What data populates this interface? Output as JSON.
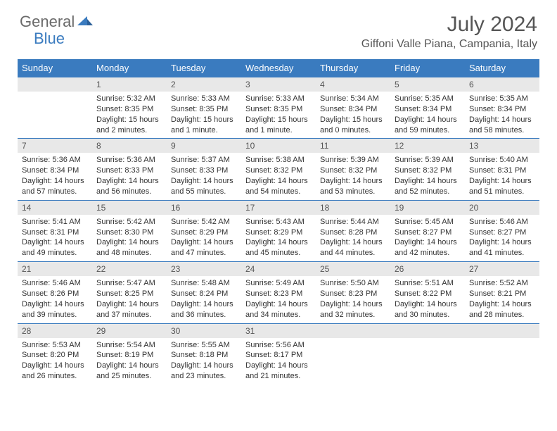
{
  "logo": {
    "text1": "General",
    "text2": "Blue"
  },
  "title": "July 2024",
  "location": "Giffoni Valle Piana, Campania, Italy",
  "colors": {
    "header_bg": "#3a7bbf",
    "header_text": "#ffffff",
    "daynum_bg": "#e8e8e8",
    "border": "#3a7bbf",
    "body_text": "#333333",
    "title_text": "#555555",
    "logo_gray": "#6a6a6a",
    "logo_blue": "#3a7bbf"
  },
  "weekdays": [
    "Sunday",
    "Monday",
    "Tuesday",
    "Wednesday",
    "Thursday",
    "Friday",
    "Saturday"
  ],
  "weeks": [
    [
      null,
      {
        "n": "1",
        "sr": "5:32 AM",
        "ss": "8:35 PM",
        "dl": "15 hours and 2 minutes."
      },
      {
        "n": "2",
        "sr": "5:33 AM",
        "ss": "8:35 PM",
        "dl": "15 hours and 1 minute."
      },
      {
        "n": "3",
        "sr": "5:33 AM",
        "ss": "8:35 PM",
        "dl": "15 hours and 1 minute."
      },
      {
        "n": "4",
        "sr": "5:34 AM",
        "ss": "8:34 PM",
        "dl": "15 hours and 0 minutes."
      },
      {
        "n": "5",
        "sr": "5:35 AM",
        "ss": "8:34 PM",
        "dl": "14 hours and 59 minutes."
      },
      {
        "n": "6",
        "sr": "5:35 AM",
        "ss": "8:34 PM",
        "dl": "14 hours and 58 minutes."
      }
    ],
    [
      {
        "n": "7",
        "sr": "5:36 AM",
        "ss": "8:34 PM",
        "dl": "14 hours and 57 minutes."
      },
      {
        "n": "8",
        "sr": "5:36 AM",
        "ss": "8:33 PM",
        "dl": "14 hours and 56 minutes."
      },
      {
        "n": "9",
        "sr": "5:37 AM",
        "ss": "8:33 PM",
        "dl": "14 hours and 55 minutes."
      },
      {
        "n": "10",
        "sr": "5:38 AM",
        "ss": "8:32 PM",
        "dl": "14 hours and 54 minutes."
      },
      {
        "n": "11",
        "sr": "5:39 AM",
        "ss": "8:32 PM",
        "dl": "14 hours and 53 minutes."
      },
      {
        "n": "12",
        "sr": "5:39 AM",
        "ss": "8:32 PM",
        "dl": "14 hours and 52 minutes."
      },
      {
        "n": "13",
        "sr": "5:40 AM",
        "ss": "8:31 PM",
        "dl": "14 hours and 51 minutes."
      }
    ],
    [
      {
        "n": "14",
        "sr": "5:41 AM",
        "ss": "8:31 PM",
        "dl": "14 hours and 49 minutes."
      },
      {
        "n": "15",
        "sr": "5:42 AM",
        "ss": "8:30 PM",
        "dl": "14 hours and 48 minutes."
      },
      {
        "n": "16",
        "sr": "5:42 AM",
        "ss": "8:29 PM",
        "dl": "14 hours and 47 minutes."
      },
      {
        "n": "17",
        "sr": "5:43 AM",
        "ss": "8:29 PM",
        "dl": "14 hours and 45 minutes."
      },
      {
        "n": "18",
        "sr": "5:44 AM",
        "ss": "8:28 PM",
        "dl": "14 hours and 44 minutes."
      },
      {
        "n": "19",
        "sr": "5:45 AM",
        "ss": "8:27 PM",
        "dl": "14 hours and 42 minutes."
      },
      {
        "n": "20",
        "sr": "5:46 AM",
        "ss": "8:27 PM",
        "dl": "14 hours and 41 minutes."
      }
    ],
    [
      {
        "n": "21",
        "sr": "5:46 AM",
        "ss": "8:26 PM",
        "dl": "14 hours and 39 minutes."
      },
      {
        "n": "22",
        "sr": "5:47 AM",
        "ss": "8:25 PM",
        "dl": "14 hours and 37 minutes."
      },
      {
        "n": "23",
        "sr": "5:48 AM",
        "ss": "8:24 PM",
        "dl": "14 hours and 36 minutes."
      },
      {
        "n": "24",
        "sr": "5:49 AM",
        "ss": "8:23 PM",
        "dl": "14 hours and 34 minutes."
      },
      {
        "n": "25",
        "sr": "5:50 AM",
        "ss": "8:23 PM",
        "dl": "14 hours and 32 minutes."
      },
      {
        "n": "26",
        "sr": "5:51 AM",
        "ss": "8:22 PM",
        "dl": "14 hours and 30 minutes."
      },
      {
        "n": "27",
        "sr": "5:52 AM",
        "ss": "8:21 PM",
        "dl": "14 hours and 28 minutes."
      }
    ],
    [
      {
        "n": "28",
        "sr": "5:53 AM",
        "ss": "8:20 PM",
        "dl": "14 hours and 26 minutes."
      },
      {
        "n": "29",
        "sr": "5:54 AM",
        "ss": "8:19 PM",
        "dl": "14 hours and 25 minutes."
      },
      {
        "n": "30",
        "sr": "5:55 AM",
        "ss": "8:18 PM",
        "dl": "14 hours and 23 minutes."
      },
      {
        "n": "31",
        "sr": "5:56 AM",
        "ss": "8:17 PM",
        "dl": "14 hours and 21 minutes."
      },
      null,
      null,
      null
    ]
  ],
  "labels": {
    "sunrise": "Sunrise:",
    "sunset": "Sunset:",
    "daylight": "Daylight:"
  }
}
